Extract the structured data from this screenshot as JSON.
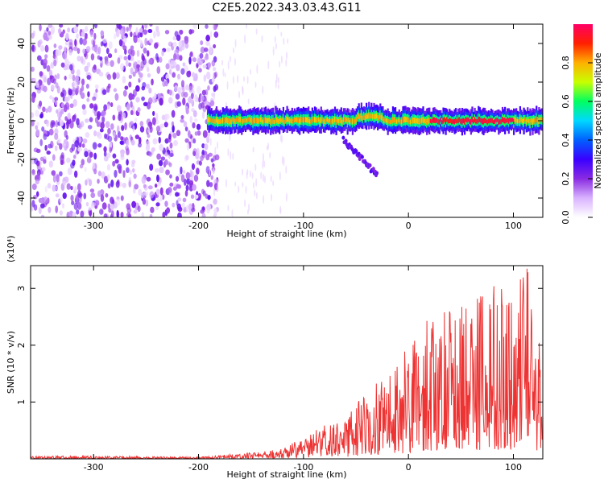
{
  "title": "C2E5.2022.343.03.43.G11",
  "chart_data": [
    {
      "type": "heatmap",
      "name": "spectrogram",
      "xlabel": "Height of straight line (km)",
      "ylabel": "Frequency (Hz)",
      "xlim": [
        -360,
        128
      ],
      "ylim": [
        -50,
        50
      ],
      "x_ticks": [
        -300,
        -200,
        -100,
        0,
        100
      ],
      "y_ticks": [
        -40,
        -20,
        0,
        20,
        40
      ],
      "colorbar": {
        "label": "Normalized spectral amplitude",
        "range": [
          0,
          1
        ],
        "ticks": [
          0.0,
          0.2,
          0.4,
          0.6,
          0.8
        ],
        "tick_labels": [
          "0.0",
          "0.2",
          "0.4",
          "0.6",
          "0.8"
        ],
        "colors": [
          "#ffffff",
          "#d9b3ff",
          "#8a2be2",
          "#3a00ff",
          "#0060ff",
          "#00d8ff",
          "#00ff60",
          "#c8ff00",
          "#ffb000",
          "#ff2000",
          "#ff0066"
        ]
      },
      "features": [
        {
          "name": "noise region",
          "x_range": [
            -360,
            -182
          ],
          "freq_range": [
            -50,
            50
          ],
          "amplitude": "low"
        },
        {
          "name": "signal band",
          "x_range": [
            -192,
            128
          ],
          "center_freq_hz": 0,
          "half_width_hz": 6,
          "amplitude": "high"
        },
        {
          "name": "chirp trace",
          "x_range": [
            -62,
            -30
          ],
          "freq_range": [
            -28,
            -10
          ]
        }
      ]
    },
    {
      "type": "line",
      "name": "snr",
      "xlabel": "Height of straight line (km)",
      "ylabel": "SNR (10 * v/v)",
      "multiplier": "(x10⁴)",
      "xlim": [
        -360,
        128
      ],
      "ylim": [
        0,
        3.4
      ],
      "x_ticks": [
        -300,
        -200,
        -100,
        0,
        100
      ],
      "y_ticks": [
        1,
        2,
        3
      ],
      "color": "#ee3333",
      "series_envelope": [
        {
          "x": -360,
          "y": 0.05
        },
        {
          "x": -300,
          "y": 0.05
        },
        {
          "x": -250,
          "y": 0.04
        },
        {
          "x": -200,
          "y": 0.04
        },
        {
          "x": -170,
          "y": 0.08
        },
        {
          "x": -150,
          "y": 0.12
        },
        {
          "x": -120,
          "y": 0.18
        },
        {
          "x": -100,
          "y": 0.4
        },
        {
          "x": -80,
          "y": 0.6
        },
        {
          "x": -60,
          "y": 0.7
        },
        {
          "x": -40,
          "y": 1.2
        },
        {
          "x": -20,
          "y": 1.6
        },
        {
          "x": 0,
          "y": 2.0
        },
        {
          "x": 20,
          "y": 2.5
        },
        {
          "x": 50,
          "y": 2.7
        },
        {
          "x": 80,
          "y": 3.1
        },
        {
          "x": 100,
          "y": 3.0
        },
        {
          "x": 114,
          "y": 3.4
        },
        {
          "x": 128,
          "y": 2.6
        }
      ]
    }
  ]
}
